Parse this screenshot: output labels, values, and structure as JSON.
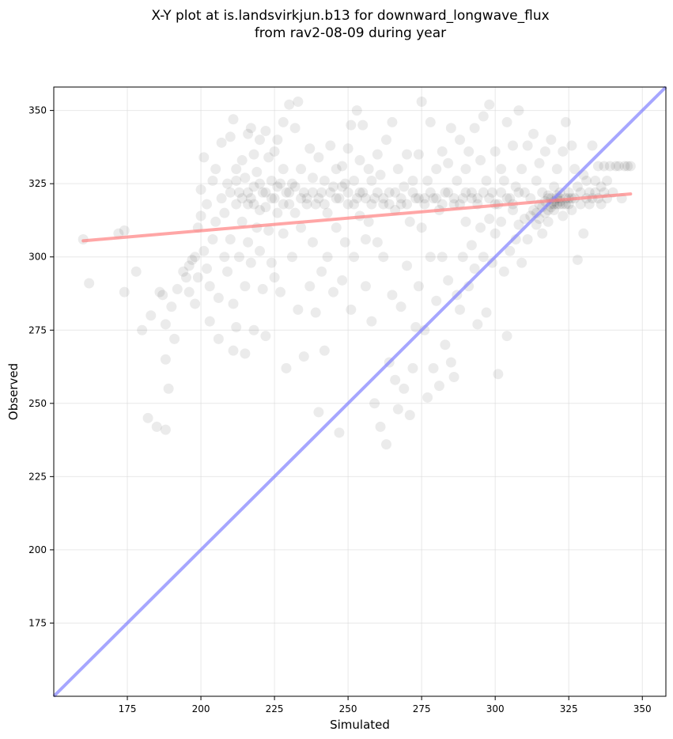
{
  "chart_data": {
    "type": "scatter",
    "title_line1": "X-Y plot at is.landsvirkjun.b13 for downward_longwave_flux",
    "title_line2": "from rav2-08-09 during year",
    "xlabel": "Simulated",
    "ylabel": "Observed",
    "xlim": [
      150,
      358
    ],
    "ylim": [
      150,
      358
    ],
    "xticks": [
      175,
      200,
      225,
      250,
      275,
      300,
      325,
      350
    ],
    "yticks": [
      175,
      200,
      225,
      250,
      275,
      300,
      325,
      350
    ],
    "grid": true,
    "colors": {
      "points": "#000000",
      "fit_line": "#ff8080",
      "identity_line": "#8080ff"
    },
    "identity_line": {
      "from": [
        150,
        150
      ],
      "to": [
        358,
        358
      ]
    },
    "fit_line": {
      "from": [
        160,
        305.5
      ],
      "to": [
        346,
        321.5
      ]
    },
    "points": [
      [
        160,
        306
      ],
      [
        162,
        291
      ],
      [
        172,
        308
      ],
      [
        174,
        309
      ],
      [
        174,
        288
      ],
      [
        178,
        295
      ],
      [
        180,
        275
      ],
      [
        182,
        245
      ],
      [
        183,
        280
      ],
      [
        185,
        242
      ],
      [
        186,
        288
      ],
      [
        187,
        287
      ],
      [
        188,
        241
      ],
      [
        188,
        277
      ],
      [
        188,
        265
      ],
      [
        189,
        255
      ],
      [
        190,
        283
      ],
      [
        191,
        272
      ],
      [
        192,
        289
      ],
      [
        194,
        295
      ],
      [
        195,
        293
      ],
      [
        196,
        297
      ],
      [
        196,
        288
      ],
      [
        197,
        299
      ],
      [
        198,
        300
      ],
      [
        198,
        284
      ],
      [
        199,
        293
      ],
      [
        199,
        310
      ],
      [
        200,
        314
      ],
      [
        200,
        323
      ],
      [
        201,
        334
      ],
      [
        201,
        302
      ],
      [
        202,
        318
      ],
      [
        202,
        296
      ],
      [
        203,
        278
      ],
      [
        203,
        290
      ],
      [
        204,
        306
      ],
      [
        204,
        326
      ],
      [
        205,
        330
      ],
      [
        205,
        312
      ],
      [
        206,
        272
      ],
      [
        206,
        286
      ],
      [
        207,
        339
      ],
      [
        207,
        320
      ],
      [
        208,
        300
      ],
      [
        208,
        315
      ],
      [
        209,
        325
      ],
      [
        209,
        295
      ],
      [
        210,
        341
      ],
      [
        210,
        306
      ],
      [
        211,
        347
      ],
      [
        211,
        284
      ],
      [
        211,
        268
      ],
      [
        212,
        330
      ],
      [
        212,
        318
      ],
      [
        212,
        276
      ],
      [
        213,
        322
      ],
      [
        213,
        300
      ],
      [
        214,
        333
      ],
      [
        214,
        312
      ],
      [
        215,
        327
      ],
      [
        215,
        290
      ],
      [
        215,
        267
      ],
      [
        216,
        342
      ],
      [
        216,
        322
      ],
      [
        216,
        305
      ],
      [
        217,
        344
      ],
      [
        217,
        320
      ],
      [
        217,
        298
      ],
      [
        218,
        335
      ],
      [
        218,
        318
      ],
      [
        218,
        275
      ],
      [
        219,
        329
      ],
      [
        219,
        310
      ],
      [
        220,
        340
      ],
      [
        220,
        325
      ],
      [
        220,
        302
      ],
      [
        221,
        322
      ],
      [
        221,
        289
      ],
      [
        222,
        343
      ],
      [
        222,
        317
      ],
      [
        222,
        273
      ],
      [
        223,
        334
      ],
      [
        223,
        309
      ],
      [
        224,
        326
      ],
      [
        224,
        298
      ],
      [
        225,
        336
      ],
      [
        225,
        320
      ],
      [
        225,
        293
      ],
      [
        226,
        340
      ],
      [
        226,
        315
      ],
      [
        227,
        325
      ],
      [
        227,
        288
      ],
      [
        228,
        346
      ],
      [
        228,
        330
      ],
      [
        228,
        308
      ],
      [
        229,
        322
      ],
      [
        229,
        262
      ],
      [
        230,
        352
      ],
      [
        230,
        318
      ],
      [
        231,
        325
      ],
      [
        231,
        300
      ],
      [
        232,
        344
      ],
      [
        232,
        315
      ],
      [
        233,
        353
      ],
      [
        233,
        282
      ],
      [
        234,
        330
      ],
      [
        234,
        310
      ],
      [
        235,
        322
      ],
      [
        235,
        266
      ],
      [
        236,
        320
      ],
      [
        237,
        337
      ],
      [
        237,
        290
      ],
      [
        238,
        327
      ],
      [
        238,
        305
      ],
      [
        239,
        318
      ],
      [
        239,
        281
      ],
      [
        240,
        334
      ],
      [
        240,
        247
      ],
      [
        241,
        322
      ],
      [
        241,
        295
      ],
      [
        242,
        326
      ],
      [
        242,
        268
      ],
      [
        243,
        315
      ],
      [
        243,
        300
      ],
      [
        244,
        338
      ],
      [
        245,
        324
      ],
      [
        245,
        288
      ],
      [
        246,
        330
      ],
      [
        246,
        310
      ],
      [
        247,
        320
      ],
      [
        247,
        240
      ],
      [
        248,
        331
      ],
      [
        248,
        292
      ],
      [
        249,
        325
      ],
      [
        249,
        305
      ],
      [
        250,
        337
      ],
      [
        250,
        318
      ],
      [
        251,
        345
      ],
      [
        251,
        282
      ],
      [
        252,
        326
      ],
      [
        252,
        300
      ],
      [
        253,
        350
      ],
      [
        253,
        320
      ],
      [
        254,
        314
      ],
      [
        254,
        333
      ],
      [
        255,
        322
      ],
      [
        255,
        345
      ],
      [
        256,
        306
      ],
      [
        256,
        290
      ],
      [
        257,
        330
      ],
      [
        257,
        312
      ],
      [
        258,
        326
      ],
      [
        258,
        278
      ],
      [
        259,
        320
      ],
      [
        259,
        250
      ],
      [
        260,
        335
      ],
      [
        260,
        305
      ],
      [
        261,
        328
      ],
      [
        261,
        242
      ],
      [
        262,
        318
      ],
      [
        262,
        300
      ],
      [
        263,
        340
      ],
      [
        263,
        236
      ],
      [
        264,
        322
      ],
      [
        264,
        264
      ],
      [
        265,
        346
      ],
      [
        265,
        287
      ],
      [
        266,
        316
      ],
      [
        266,
        258
      ],
      [
        267,
        330
      ],
      [
        267,
        248
      ],
      [
        268,
        318
      ],
      [
        268,
        283
      ],
      [
        269,
        324
      ],
      [
        269,
        255
      ],
      [
        270,
        335
      ],
      [
        270,
        297
      ],
      [
        271,
        312
      ],
      [
        271,
        246
      ],
      [
        272,
        326
      ],
      [
        272,
        262
      ],
      [
        273,
        320
      ],
      [
        273,
        276
      ],
      [
        274,
        335
      ],
      [
        274,
        290
      ],
      [
        275,
        353
      ],
      [
        275,
        310
      ],
      [
        276,
        320
      ],
      [
        276,
        275
      ],
      [
        277,
        326
      ],
      [
        277,
        252
      ],
      [
        278,
        346
      ],
      [
        278,
        300
      ],
      [
        279,
        320
      ],
      [
        279,
        262
      ],
      [
        280,
        330
      ],
      [
        280,
        285
      ],
      [
        281,
        316
      ],
      [
        281,
        256
      ],
      [
        282,
        336
      ],
      [
        282,
        300
      ],
      [
        283,
        322
      ],
      [
        283,
        270
      ],
      [
        284,
        332
      ],
      [
        284,
        292
      ],
      [
        285,
        344
      ],
      [
        285,
        264
      ],
      [
        286,
        318
      ],
      [
        286,
        259
      ],
      [
        287,
        326
      ],
      [
        287,
        287
      ],
      [
        288,
        340
      ],
      [
        288,
        282
      ],
      [
        289,
        320
      ],
      [
        289,
        300
      ],
      [
        290,
        330
      ],
      [
        290,
        312
      ],
      [
        291,
        336
      ],
      [
        291,
        290
      ],
      [
        292,
        322
      ],
      [
        292,
        304
      ],
      [
        293,
        344
      ],
      [
        293,
        296
      ],
      [
        294,
        320
      ],
      [
        294,
        277
      ],
      [
        295,
        333
      ],
      [
        295,
        310
      ],
      [
        296,
        348
      ],
      [
        296,
        300
      ],
      [
        297,
        326
      ],
      [
        297,
        281
      ],
      [
        298,
        352
      ],
      [
        298,
        313
      ],
      [
        299,
        322
      ],
      [
        299,
        298
      ],
      [
        300,
        336
      ],
      [
        300,
        308
      ],
      [
        301,
        318
      ],
      [
        301,
        260
      ],
      [
        302,
        330
      ],
      [
        302,
        312
      ],
      [
        303,
        326
      ],
      [
        303,
        295
      ],
      [
        304,
        346
      ],
      [
        304,
        273
      ],
      [
        305,
        320
      ],
      [
        305,
        302
      ],
      [
        306,
        338
      ],
      [
        306,
        316
      ],
      [
        307,
        324
      ],
      [
        307,
        306
      ],
      [
        308,
        350
      ],
      [
        308,
        311
      ],
      [
        309,
        330
      ],
      [
        309,
        298
      ],
      [
        310,
        322
      ],
      [
        310,
        313
      ],
      [
        311,
        338
      ],
      [
        311,
        306
      ],
      [
        312,
        320
      ],
      [
        312,
        314
      ],
      [
        313,
        342
      ],
      [
        313,
        316
      ],
      [
        314,
        326
      ],
      [
        314,
        311
      ],
      [
        315,
        332
      ],
      [
        315,
        318
      ],
      [
        316,
        322
      ],
      [
        316,
        308
      ],
      [
        317,
        336
      ],
      [
        317,
        315
      ],
      [
        318,
        320
      ],
      [
        318,
        312
      ],
      [
        319,
        340
      ],
      [
        319,
        318
      ],
      [
        320,
        324
      ],
      [
        320,
        316
      ],
      [
        321,
        330
      ],
      [
        321,
        320
      ],
      [
        322,
        318
      ],
      [
        322,
        322
      ],
      [
        323,
        336
      ],
      [
        323,
        314
      ],
      [
        324,
        346
      ],
      [
        324,
        318
      ],
      [
        325,
        320
      ],
      [
        325,
        322
      ],
      [
        326,
        338
      ],
      [
        326,
        316
      ],
      [
        327,
        330
      ],
      [
        327,
        320
      ],
      [
        328,
        324
      ],
      [
        328,
        299
      ],
      [
        329,
        318
      ],
      [
        329,
        322
      ],
      [
        330,
        328
      ],
      [
        330,
        308
      ],
      [
        331,
        320
      ],
      [
        331,
        326
      ],
      [
        332,
        322
      ],
      [
        332,
        318
      ],
      [
        333,
        338
      ],
      [
        333,
        320
      ],
      [
        334,
        326
      ],
      [
        334,
        322
      ],
      [
        335,
        320
      ],
      [
        335,
        331
      ],
      [
        336,
        324
      ],
      [
        336,
        318
      ],
      [
        337,
        331
      ],
      [
        337,
        322
      ],
      [
        338,
        320
      ],
      [
        338,
        326
      ],
      [
        339,
        331
      ],
      [
        340,
        322
      ],
      [
        341,
        331
      ],
      [
        342,
        331
      ],
      [
        343,
        320
      ],
      [
        344,
        331
      ],
      [
        345,
        331
      ],
      [
        346,
        331
      ],
      [
        318,
        316
      ],
      [
        319,
        320
      ],
      [
        320,
        318
      ],
      [
        321,
        318
      ],
      [
        322,
        320
      ],
      [
        323,
        318
      ],
      [
        324,
        320
      ],
      [
        325,
        318
      ],
      [
        326,
        320
      ],
      [
        314,
        315
      ],
      [
        315,
        313
      ],
      [
        316,
        317
      ],
      [
        317,
        319
      ],
      [
        318,
        321
      ],
      [
        319,
        317
      ],
      [
        320,
        319
      ],
      [
        321,
        321
      ],
      [
        322,
        319
      ],
      [
        210,
        322
      ],
      [
        212,
        326
      ],
      [
        214,
        320
      ],
      [
        216,
        318
      ],
      [
        218,
        324
      ],
      [
        220,
        316
      ],
      [
        222,
        322
      ],
      [
        224,
        320
      ],
      [
        226,
        324
      ],
      [
        228,
        318
      ],
      [
        230,
        322
      ],
      [
        232,
        324
      ],
      [
        234,
        320
      ],
      [
        236,
        318
      ],
      [
        238,
        322
      ],
      [
        240,
        320
      ],
      [
        242,
        318
      ],
      [
        244,
        322
      ],
      [
        246,
        320
      ],
      [
        248,
        324
      ],
      [
        250,
        322
      ],
      [
        252,
        318
      ],
      [
        254,
        322
      ],
      [
        256,
        320
      ],
      [
        258,
        318
      ],
      [
        260,
        322
      ],
      [
        262,
        320
      ],
      [
        264,
        318
      ],
      [
        266,
        322
      ],
      [
        268,
        320
      ],
      [
        270,
        318
      ],
      [
        272,
        322
      ],
      [
        274,
        320
      ],
      [
        276,
        318
      ],
      [
        278,
        322
      ],
      [
        280,
        320
      ],
      [
        282,
        318
      ],
      [
        284,
        322
      ],
      [
        286,
        320
      ],
      [
        288,
        318
      ],
      [
        290,
        322
      ],
      [
        292,
        320
      ],
      [
        294,
        318
      ],
      [
        296,
        322
      ],
      [
        298,
        320
      ],
      [
        300,
        318
      ],
      [
        302,
        322
      ],
      [
        304,
        320
      ],
      [
        306,
        318
      ],
      [
        308,
        322
      ]
    ]
  }
}
